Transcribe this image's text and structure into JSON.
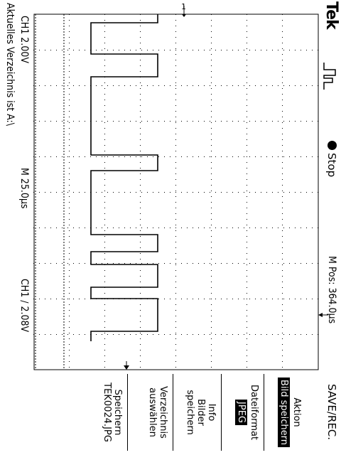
{
  "header": {
    "brand": "Tek",
    "acquire_icon": "trigger-waveform-icon",
    "run_state": "Stop",
    "horizontal_position": "M Pos: 364.0µs",
    "menu_title": "SAVE/REC."
  },
  "markers": {
    "channel_marker": "1",
    "trigger_marker_top": "trigger-position-arrow-icon",
    "trigger_marker_side": "trigger-level-arrow-icon"
  },
  "footer": {
    "channel_scale": "CH1  2.00V",
    "timebase": "M 25.0µs",
    "trigger": "CH1  ∕  2.08V",
    "status_message": "Aktuelles Verzeichnis ist A:\\"
  },
  "menu": {
    "action_label": "Aktion",
    "action_value": "Bild speichern",
    "format_label": "Dateiformat",
    "format_value": "JPEG",
    "info_line1": "Info",
    "info_line2": "Bilder",
    "info_line3": "speichern",
    "dir_line1": "Verzeichnis",
    "dir_line2": "auswählen",
    "save_line1": "Speichern",
    "save_line2": "TEK0024.JPG"
  },
  "colors": {
    "background": "#ffffff",
    "foreground": "#000000"
  }
}
